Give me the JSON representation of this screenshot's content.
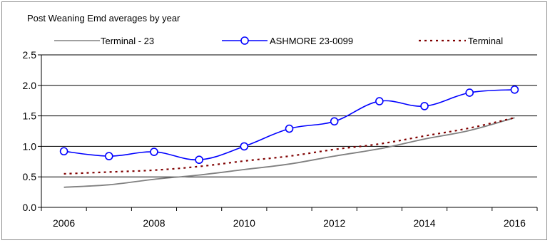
{
  "chart_data": {
    "type": "line",
    "title": "Post Weaning Emd  averages by year",
    "xlabel": "",
    "ylabel": "",
    "x": [
      2006,
      2007,
      2008,
      2009,
      2010,
      2011,
      2012,
      2013,
      2014,
      2015,
      2016
    ],
    "xlim": [
      2005.5,
      2016.5
    ],
    "ylim": [
      0.0,
      2.5
    ],
    "x_ticks": [
      "2006",
      "2008",
      "2010",
      "2012",
      "2014",
      "2016"
    ],
    "y_ticks": [
      "0.0",
      "0.5",
      "1.0",
      "1.5",
      "2.0",
      "2.5"
    ],
    "grid": "horizontal",
    "legend_position": "top",
    "series": [
      {
        "name": "Terminal - 23",
        "color": "#808080",
        "style": "solid",
        "markers": false,
        "values": [
          0.33,
          0.37,
          0.46,
          0.53,
          0.62,
          0.71,
          0.84,
          0.96,
          1.12,
          1.26,
          1.47
        ]
      },
      {
        "name": "ASHMORE 23-0099",
        "color": "#0000ff",
        "style": "solid",
        "markers": true,
        "values": [
          0.92,
          0.84,
          0.91,
          0.78,
          1.0,
          1.29,
          1.41,
          1.74,
          1.66,
          1.88,
          1.93
        ]
      },
      {
        "name": "Terminal",
        "color": "#800000",
        "style": "dotted",
        "markers": false,
        "values": [
          0.55,
          0.58,
          0.61,
          0.67,
          0.76,
          0.84,
          0.95,
          1.04,
          1.17,
          1.3,
          1.47
        ]
      }
    ]
  }
}
